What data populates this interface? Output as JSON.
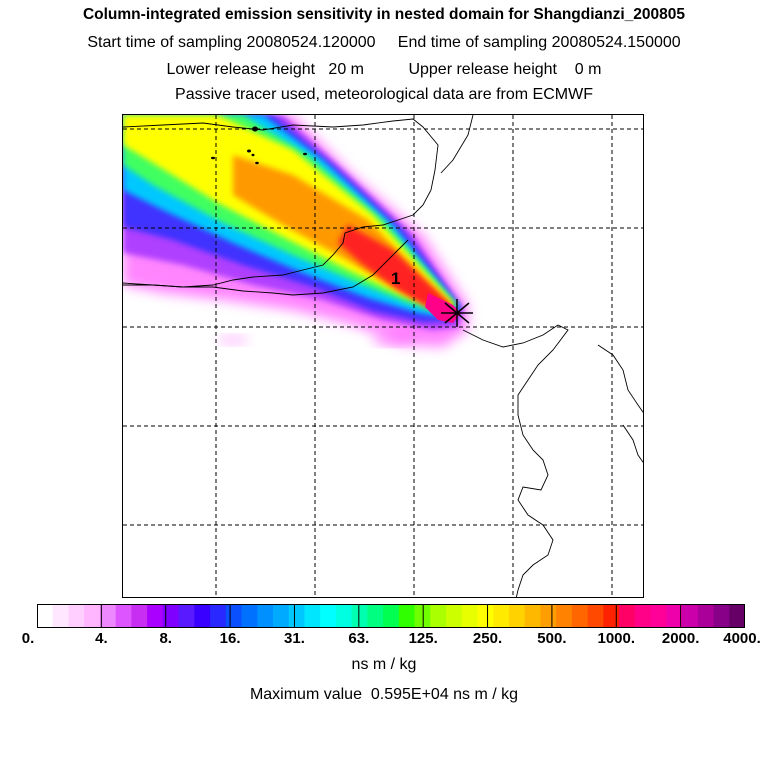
{
  "header": {
    "title": "Column-integrated emission sensitivity in nested domain for Shangdianzi_200805",
    "start_label": "Start time of sampling",
    "start_value": "20080524.120000",
    "end_label": "End time of sampling",
    "end_value": "20080524.150000",
    "lower_label": "Lower release height",
    "lower_value": "20 m",
    "upper_label": "Upper release height",
    "upper_value": "0 m",
    "tracer_note": "Passive tracer used, meteorological data are from ECMWF"
  },
  "map": {
    "station_label": "1",
    "release_marker": "asterisk-icon",
    "colors": {
      "magenta": "#ff55ff",
      "purple": "#8a2be2",
      "blue": "#3a3aff",
      "cyan": "#00e0ff",
      "green": "#40ff40",
      "yellow": "#ffff00",
      "orange": "#ff9900",
      "red": "#ff2020",
      "deep": "#ff0088"
    }
  },
  "legend": {
    "colors": [
      "#ffffff",
      "#ffe8ff",
      "#ffd0ff",
      "#ffb6ff",
      "#ee88ff",
      "#dd55ff",
      "#c72ef2",
      "#aa00ff",
      "#8000ff",
      "#5a1aff",
      "#3a00ff",
      "#2828ff",
      "#0a50ff",
      "#0070ff",
      "#0090ff",
      "#00aaff",
      "#00c8ff",
      "#00e6ff",
      "#00ffff",
      "#00ffe0",
      "#00ffb0",
      "#00ff80",
      "#00ff50",
      "#30ff00",
      "#70ff00",
      "#aaff00",
      "#ccff00",
      "#e8ff00",
      "#ffff00",
      "#ffea00",
      "#ffd200",
      "#ffb800",
      "#ff9e00",
      "#ff8200",
      "#ff6600",
      "#ff4800",
      "#ff2200",
      "#ff0066",
      "#ff0088",
      "#ff0099",
      "#ee00aa",
      "#cc00aa",
      "#aa0099",
      "#880088",
      "#660066"
    ],
    "ticks": [
      "0.",
      "4.",
      "8.",
      "16.",
      "31.",
      "63.",
      "125.",
      "250.",
      "500.",
      "1000.",
      "2000.",
      "4000."
    ],
    "unit": "ns m / kg",
    "max_label": "Maximum value",
    "max_value": "0.595E+04 ns m / kg"
  }
}
